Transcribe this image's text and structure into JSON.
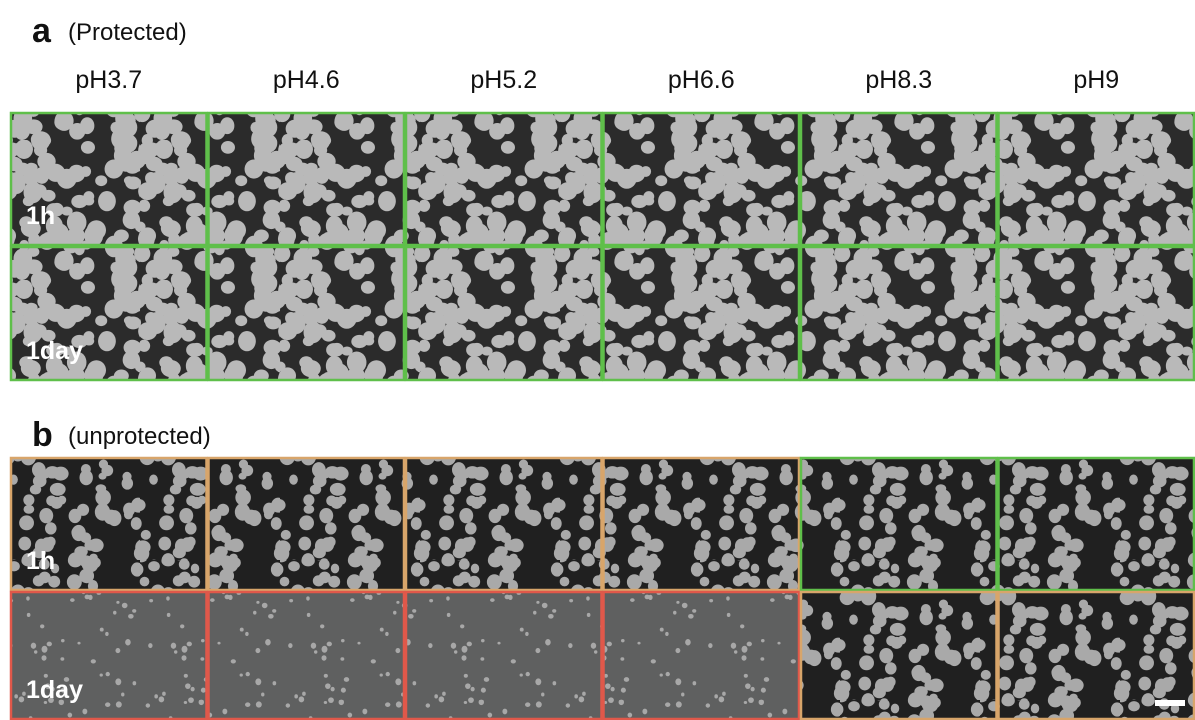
{
  "columns": [
    "pH3.7",
    "pH4.6",
    "pH5.2",
    "pH6.6",
    "pH8.3",
    "pH9"
  ],
  "panels": [
    {
      "label": "a",
      "title": "(Protected)",
      "rows": [
        "1h",
        "1day"
      ]
    },
    {
      "label": "b",
      "title": "(unprotected)",
      "rows": [
        "1h",
        "1day"
      ]
    }
  ]
}
